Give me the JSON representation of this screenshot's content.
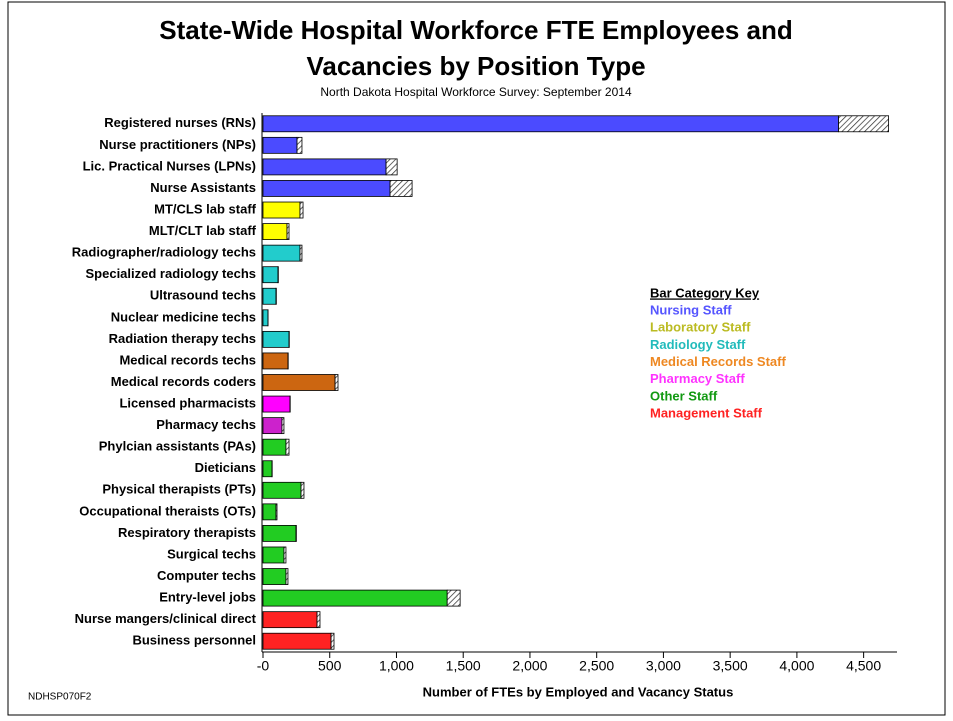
{
  "chart_data": {
    "type": "stacked-barh",
    "title": [
      "State-Wide Hospital Workforce FTE Employees and",
      "Vacancies by Position Type"
    ],
    "subtitle": "North Dakota Hospital Workforce Survey: September 2014",
    "xlabel": "Number of FTEs by Employed and Vacancy Status",
    "footnote": "NDHSP070F2",
    "categories": [
      "Registered nurses (RNs)",
      "Nurse practitioners (NPs)",
      "Lic. Practical Nurses (LPNs)",
      "Nurse Assistants",
      "MT/CLS lab staff",
      "MLT/CLT lab staff",
      "Radiographer/radiology techs",
      "Specialized radiology techs",
      "Ultrasound techs",
      "Nuclear medicine techs",
      "Radiation therapy techs",
      "Medical records techs",
      "Medical records coders",
      "Licensed pharmacists",
      "Pharmacy techs",
      "Phylcian assistants (PAs)",
      "Dieticians",
      "Physical therapists (PTs)",
      "Occupational theraists (OTs)",
      "Respiratory therapists",
      "Surgical techs",
      "Computer techs",
      "Entry-level jobs",
      "Nurse mangers/clinical direct",
      "Business personnel"
    ],
    "series": [
      {
        "color": [
          "#4b4bff",
          "#4b4bff",
          "#4b4bff",
          "#4b4bff",
          "#ffff00",
          "#ffff00",
          "#22cccc",
          "#22cccc",
          "#22cccc",
          "#22cccc",
          "#22cccc",
          "#cc6611",
          "#cc6611",
          "#ff00ff",
          "#cc22cc",
          "#22cc22",
          "#22cc22",
          "#22cc22",
          "#22cc22",
          "#22cc22",
          "#22cc22",
          "#22cc22",
          "#22cc22",
          "#ff2222",
          "#ff2222"
        ],
        "values": [
          4312,
          255,
          922,
          952,
          277,
          180,
          277,
          112,
          97,
          37,
          195,
          187,
          540,
          202,
          142,
          172,
          67,
          285,
          97,
          247,
          157,
          172,
          1380,
          405,
          510
        ]
      },
      {
        "color": "#888888",
        "pattern": "hatch",
        "values": [
          375,
          37,
          83,
          165,
          23,
          15,
          15,
          3,
          3,
          1,
          2,
          2,
          22,
          2,
          15,
          23,
          2,
          22,
          8,
          3,
          15,
          15,
          97,
          22,
          22
        ]
      }
    ],
    "xlim": [
      0,
      4750
    ],
    "xticks": [
      {
        "value": 0,
        "label": "-0"
      },
      500,
      {
        "value": 1000,
        "label": "1,000"
      },
      {
        "value": 1500,
        "label": "1,500"
      },
      {
        "value": 2000,
        "label": "2,000"
      },
      {
        "value": 2500,
        "label": "2,500"
      },
      {
        "value": 3000,
        "label": "3,000"
      },
      {
        "value": 3500,
        "label": "3,500"
      },
      {
        "value": 4000,
        "label": "4,000"
      },
      {
        "value": 4500,
        "label": "4,500"
      }
    ],
    "key": {
      "title": "Bar Category Key",
      "items": [
        {
          "label": "Nursing Staff",
          "color": "#5555ff"
        },
        {
          "label": "Laboratory Staff",
          "color": "#bbbb22"
        },
        {
          "label": "Radiology Staff",
          "color": "#22bbbb"
        },
        {
          "label": "Medical Records Staff",
          "color": "#ee8822"
        },
        {
          "label": "Pharmacy Staff",
          "color": "#ff33ff"
        },
        {
          "label": "Other Staff",
          "color": "#119911"
        },
        {
          "label": "Management Staff",
          "color": "#ff2222"
        }
      ]
    }
  }
}
